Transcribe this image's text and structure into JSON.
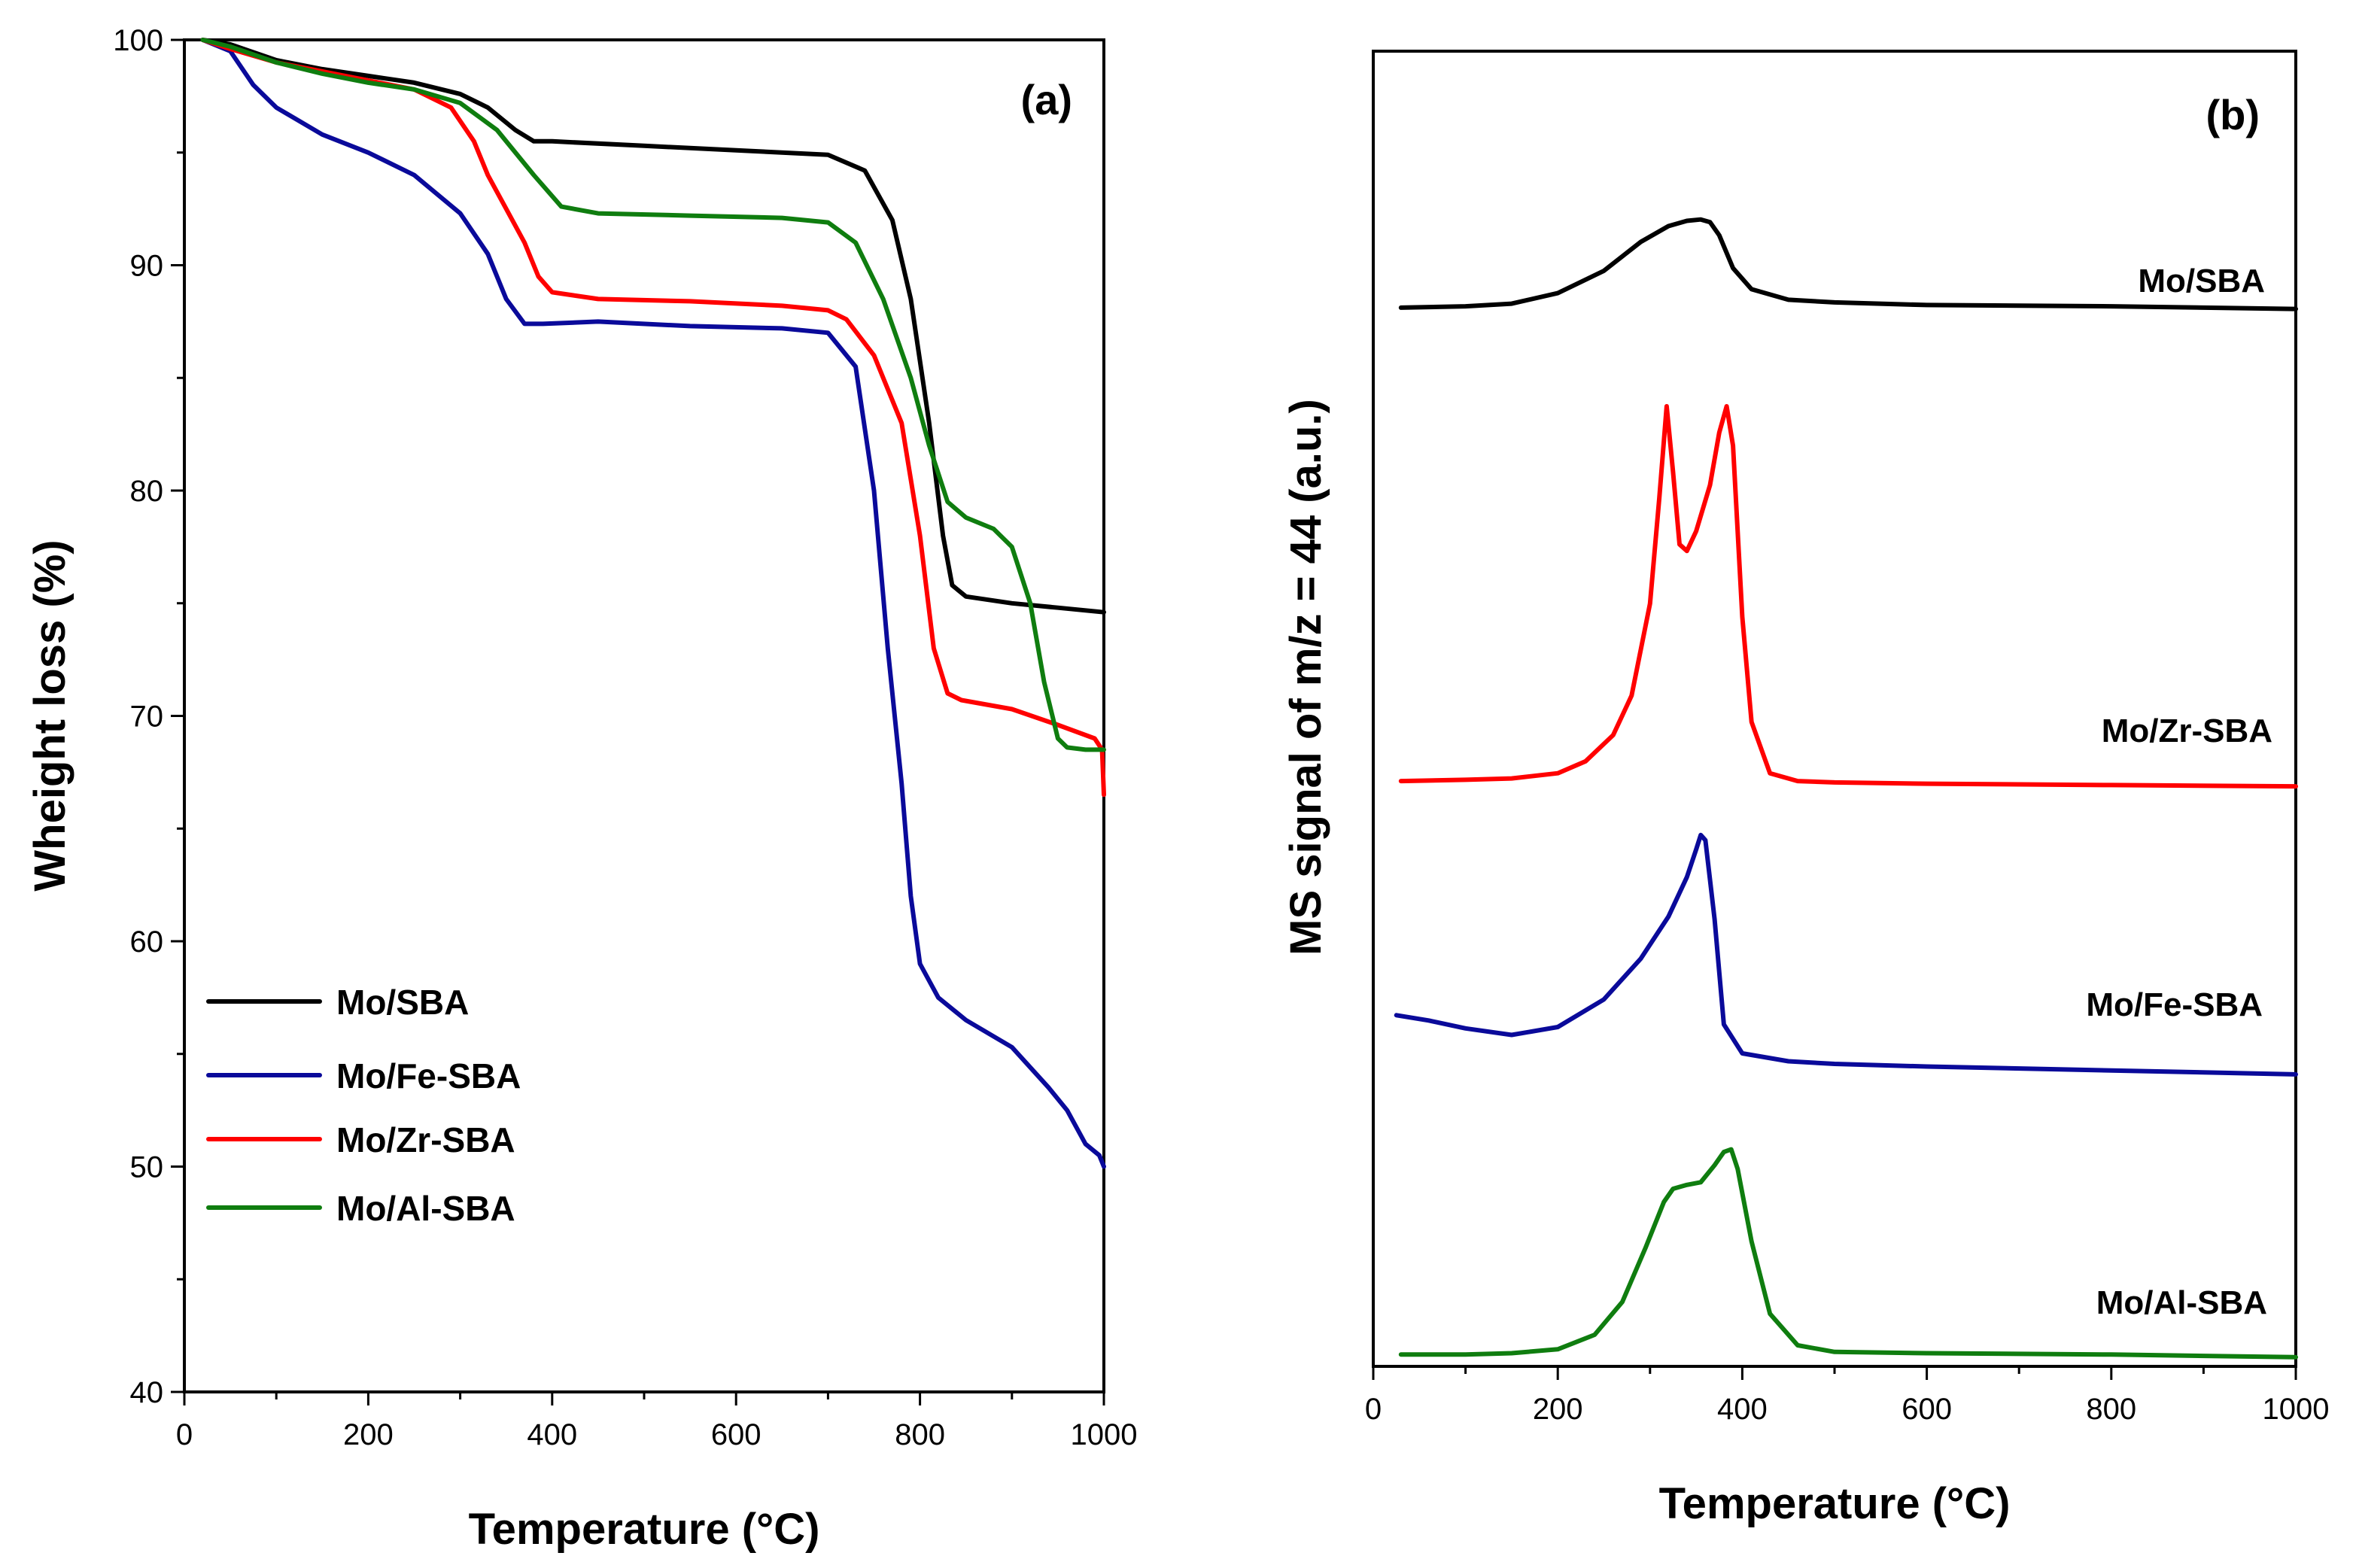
{
  "figure": {
    "panels": [
      "(a)",
      "(b)"
    ]
  },
  "colors": {
    "Mo/SBA": "#000000",
    "Mo/Fe-SBA": "#0a0a9a",
    "Mo/Zr-SBA": "#ff0000",
    "Mo/Al-SBA": "#0f7d0f"
  },
  "chart_data": [
    {
      "type": "line",
      "panel_label": "(a)",
      "title": "",
      "xlabel": "Temperature (°C)",
      "ylabel": "Wheight loss (%)",
      "xlim": [
        0,
        1000
      ],
      "ylim": [
        40,
        100
      ],
      "xticks": [
        0,
        200,
        400,
        600,
        800,
        1000
      ],
      "yticks": [
        40,
        50,
        60,
        70,
        80,
        90,
        100
      ],
      "legend_position": "bottom-left",
      "legend": [
        "Mo/SBA",
        "Mo/Fe-SBA",
        "Mo/Zr-SBA",
        "Mo/Al-SBA"
      ],
      "series": [
        {
          "name": "Mo/SBA",
          "x": [
            20,
            50,
            100,
            150,
            200,
            250,
            300,
            330,
            360,
            380,
            400,
            500,
            600,
            700,
            740,
            770,
            790,
            810,
            825,
            835,
            850,
            900,
            950,
            1000
          ],
          "y": [
            100,
            99.8,
            99.1,
            98.7,
            98.4,
            98.1,
            97.6,
            97.0,
            96.0,
            95.5,
            95.5,
            95.3,
            95.1,
            94.9,
            94.2,
            92.0,
            88.5,
            83.0,
            78.0,
            75.8,
            75.3,
            75.0,
            74.8,
            74.6
          ]
        },
        {
          "name": "Mo/Fe-SBA",
          "x": [
            20,
            50,
            75,
            100,
            150,
            200,
            250,
            300,
            330,
            350,
            370,
            390,
            450,
            550,
            650,
            700,
            730,
            750,
            765,
            780,
            790,
            800,
            820,
            850,
            900,
            940,
            960,
            980,
            995,
            1000
          ],
          "y": [
            100,
            99.5,
            98.0,
            97.0,
            95.8,
            95.0,
            94.0,
            92.3,
            90.5,
            88.5,
            87.4,
            87.4,
            87.5,
            87.3,
            87.2,
            87.0,
            85.5,
            80.0,
            73.0,
            67.0,
            62.0,
            59.0,
            57.5,
            56.5,
            55.3,
            53.5,
            52.5,
            51.0,
            50.5,
            50.0
          ]
        },
        {
          "name": "Mo/Zr-SBA",
          "x": [
            20,
            50,
            100,
            150,
            200,
            250,
            290,
            315,
            330,
            350,
            370,
            385,
            400,
            450,
            550,
            650,
            700,
            720,
            750,
            780,
            800,
            815,
            830,
            845,
            900,
            950,
            990,
            998,
            1000
          ],
          "y": [
            100,
            99.6,
            99.0,
            98.6,
            98.2,
            97.8,
            97.0,
            95.5,
            94.0,
            92.5,
            91.0,
            89.5,
            88.8,
            88.5,
            88.4,
            88.2,
            88.0,
            87.6,
            86.0,
            83.0,
            78.0,
            73.0,
            71.0,
            70.7,
            70.3,
            69.6,
            69.0,
            68.5,
            66.5
          ]
        },
        {
          "name": "Mo/Al-SBA",
          "x": [
            20,
            50,
            100,
            150,
            200,
            250,
            300,
            340,
            380,
            410,
            450,
            550,
            650,
            700,
            730,
            760,
            790,
            810,
            830,
            850,
            880,
            900,
            920,
            935,
            950,
            960,
            980,
            1000
          ],
          "y": [
            100,
            99.7,
            99.0,
            98.5,
            98.1,
            97.8,
            97.2,
            96.0,
            94.0,
            92.6,
            92.3,
            92.2,
            92.1,
            91.9,
            91.0,
            88.5,
            85.0,
            82.0,
            79.5,
            78.8,
            78.3,
            77.5,
            75.0,
            71.5,
            69.0,
            68.6,
            68.5,
            68.5
          ]
        }
      ]
    },
    {
      "type": "line",
      "panel_label": "(b)",
      "title": "",
      "xlabel": "Temperature (°C)",
      "ylabel": "MS signal of m/z = 44 (a.u.)",
      "xlim": [
        0,
        1000
      ],
      "ylim": [
        0,
        1
      ],
      "xticks": [
        0,
        200,
        400,
        600,
        800,
        1000
      ],
      "yticks": [],
      "series_labels_position": "right of each curve",
      "series": [
        {
          "name": "Mo/SBA",
          "x": [
            30,
            100,
            150,
            200,
            250,
            290,
            320,
            340,
            355,
            365,
            375,
            390,
            410,
            450,
            500,
            600,
            800,
            1000
          ],
          "y": [
            0.805,
            0.806,
            0.808,
            0.816,
            0.833,
            0.855,
            0.867,
            0.871,
            0.872,
            0.87,
            0.86,
            0.835,
            0.819,
            0.811,
            0.809,
            0.807,
            0.806,
            0.804
          ]
        },
        {
          "name": "Mo/Zr-SBA",
          "x": [
            30,
            100,
            150,
            200,
            230,
            260,
            280,
            300,
            310,
            318,
            325,
            332,
            340,
            350,
            365,
            375,
            383,
            390,
            400,
            410,
            430,
            460,
            500,
            600,
            800,
            1000
          ],
          "y": [
            0.445,
            0.446,
            0.447,
            0.451,
            0.46,
            0.48,
            0.51,
            0.58,
            0.66,
            0.73,
            0.68,
            0.625,
            0.62,
            0.635,
            0.67,
            0.71,
            0.73,
            0.7,
            0.57,
            0.49,
            0.451,
            0.445,
            0.444,
            0.443,
            0.442,
            0.441
          ]
        },
        {
          "name": "Mo/Fe-SBA",
          "x": [
            25,
            60,
            100,
            150,
            200,
            250,
            290,
            320,
            340,
            350,
            355,
            360,
            370,
            380,
            400,
            450,
            500,
            600,
            800,
            1000
          ],
          "y": [
            0.267,
            0.263,
            0.257,
            0.252,
            0.258,
            0.279,
            0.31,
            0.342,
            0.372,
            0.393,
            0.404,
            0.4,
            0.34,
            0.26,
            0.238,
            0.232,
            0.23,
            0.228,
            0.225,
            0.222
          ]
        },
        {
          "name": "Mo/Al-SBA",
          "x": [
            30,
            100,
            150,
            200,
            240,
            270,
            295,
            315,
            325,
            340,
            355,
            370,
            380,
            388,
            395,
            410,
            430,
            460,
            500,
            600,
            800,
            1000
          ],
          "y": [
            0.009,
            0.009,
            0.01,
            0.013,
            0.024,
            0.049,
            0.09,
            0.125,
            0.135,
            0.138,
            0.14,
            0.153,
            0.163,
            0.165,
            0.15,
            0.095,
            0.04,
            0.016,
            0.011,
            0.01,
            0.009,
            0.007
          ]
        }
      ]
    }
  ]
}
